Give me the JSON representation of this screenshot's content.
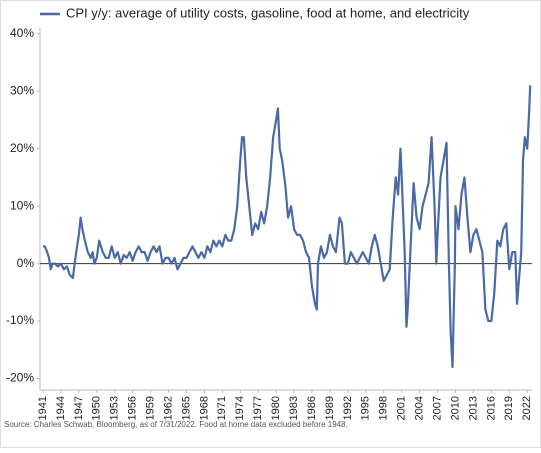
{
  "chart_data": {
    "type": "line",
    "series": [
      {
        "name": "CPI y/y: average of utility costs, gasoline, food at home, and electricity",
        "color": "#4a6aa5",
        "x": [
          1941,
          1941.3,
          1941.7,
          1942,
          1942.3,
          1942.6,
          1943,
          1943.5,
          1944,
          1944.5,
          1945,
          1945.5,
          1946,
          1946.3,
          1946.7,
          1947,
          1947.3,
          1947.6,
          1948,
          1948.5,
          1949,
          1949.3,
          1949.6,
          1950,
          1950.4,
          1950.7,
          1951,
          1951.5,
          1952,
          1952.5,
          1953,
          1953.5,
          1954,
          1954.5,
          1955,
          1955.5,
          1956,
          1956.5,
          1957,
          1957.5,
          1958,
          1958.5,
          1959,
          1959.5,
          1960,
          1960.5,
          1961,
          1961.5,
          1962,
          1962.5,
          1963,
          1963.5,
          1964,
          1964.5,
          1965,
          1965.5,
          1966,
          1966.5,
          1967,
          1967.5,
          1968,
          1968.5,
          1969,
          1969.5,
          1970,
          1970.5,
          1971,
          1971.5,
          1972,
          1972.5,
          1973,
          1973.5,
          1974,
          1974.3,
          1974.6,
          1975,
          1975.5,
          1976,
          1976.5,
          1977,
          1977.5,
          1978,
          1978.5,
          1979,
          1979.5,
          1980,
          1980.3,
          1980.6,
          1981,
          1981.5,
          1982,
          1982.5,
          1983,
          1983.5,
          1984,
          1984.5,
          1985,
          1985.5,
          1986,
          1986.5,
          1986.8,
          1987,
          1987.5,
          1988,
          1988.5,
          1989,
          1989.5,
          1990,
          1990.6,
          1991,
          1991.5,
          1992,
          1992.5,
          1993,
          1993.5,
          1994,
          1994.5,
          1995,
          1995.5,
          1996,
          1996.5,
          1997,
          1997.5,
          1998,
          1998.5,
          1999,
          1999.5,
          2000,
          2000.4,
          2000.8,
          2001,
          2001.5,
          2001.8,
          2002,
          2002.5,
          2003,
          2003.5,
          2004,
          2004.5,
          2005,
          2005.5,
          2006,
          2006.5,
          2006.8,
          2007,
          2007.5,
          2008,
          2008.5,
          2008.9,
          2009.2,
          2009.5,
          2009.9,
          2010,
          2010.5,
          2011,
          2011.5,
          2012,
          2012.5,
          2013,
          2013.5,
          2014,
          2014.5,
          2015,
          2015.5,
          2016,
          2016.5,
          2017,
          2017.5,
          2018,
          2018.5,
          2019,
          2019.5,
          2020,
          2020.3,
          2020.6,
          2021,
          2021.3,
          2021.6,
          2022,
          2022.3,
          2022.5
        ],
        "values": [
          3,
          3,
          2,
          1,
          -1,
          0,
          0,
          -0.5,
          0,
          -1,
          -0.5,
          -2,
          -2.5,
          0,
          3,
          5,
          8,
          6,
          4,
          2,
          1,
          2,
          0,
          1,
          4,
          3,
          2,
          1,
          1,
          3,
          1,
          2,
          0,
          1.5,
          1,
          2,
          0.5,
          2,
          3,
          2,
          2,
          0.5,
          2,
          3,
          2,
          3,
          0,
          1,
          1,
          0,
          1,
          -1,
          0,
          1,
          1,
          2,
          3,
          2,
          1,
          2,
          1,
          3,
          2,
          4,
          3,
          4,
          3,
          5,
          4,
          4,
          6,
          10,
          18,
          22,
          22,
          15,
          10,
          5,
          7,
          6,
          9,
          7,
          10,
          15,
          22,
          25,
          27,
          20,
          18,
          14,
          8,
          10,
          6,
          5,
          5,
          4,
          2,
          1,
          -4,
          -7,
          -8,
          0,
          3,
          1,
          2,
          5,
          3,
          2,
          8,
          7,
          0,
          0,
          2,
          1,
          0,
          1,
          2,
          1,
          0,
          3,
          5,
          3,
          0,
          -3,
          -2,
          -1,
          8,
          15,
          12,
          20,
          15,
          2,
          -11,
          -8,
          3,
          14,
          8,
          6,
          10,
          12,
          14,
          22,
          10,
          0,
          5,
          15,
          18,
          21,
          0,
          -12,
          -18,
          0,
          10,
          6,
          12,
          15,
          8,
          2,
          5,
          6,
          4,
          2,
          -8,
          -10,
          -10,
          -5,
          4,
          3,
          6,
          7,
          -1,
          2,
          2,
          -7,
          -3,
          2,
          18,
          22,
          20,
          26,
          31
        ]
      }
    ],
    "xlim": [
      1940.5,
      2022.8
    ],
    "xticks": [
      1941,
      1944,
      1947,
      1950,
      1953,
      1956,
      1959,
      1962,
      1965,
      1968,
      1971,
      1974,
      1977,
      1980,
      1983,
      1986,
      1989,
      1992,
      1995,
      1998,
      2001,
      2004,
      2007,
      2010,
      2013,
      2016,
      2019,
      2022
    ],
    "ylim": [
      -22,
      41
    ],
    "yticks": [
      {
        "value": -20,
        "label": "-20%"
      },
      {
        "value": -10,
        "label": "-10%"
      },
      {
        "value": 0,
        "label": "0%"
      },
      {
        "value": 10,
        "label": "10%"
      },
      {
        "value": 20,
        "label": "20%"
      },
      {
        "value": 30,
        "label": "30%"
      },
      {
        "value": 40,
        "label": "40%"
      }
    ],
    "source": "Source: Charles Schwab, Bloomberg, as of 7/31/2022. Food at home data excluded before 1948."
  }
}
